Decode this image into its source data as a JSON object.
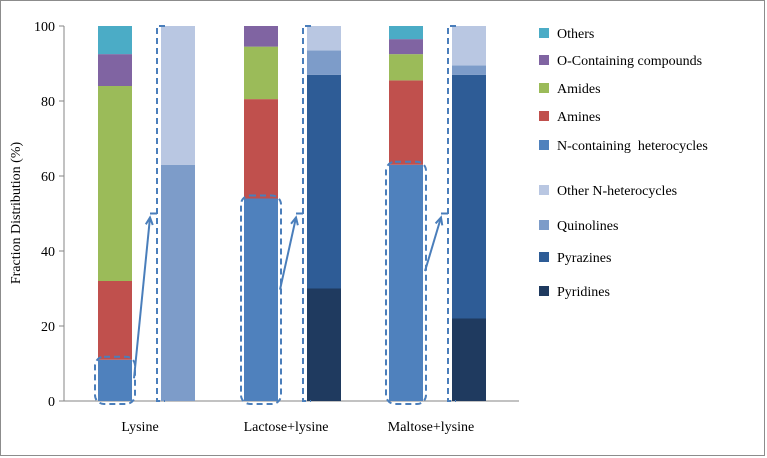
{
  "chart_data": {
    "type": "bar",
    "stacked": true,
    "ylabel": "Fraction Distribution (%)",
    "xlabel": "",
    "ylim": [
      0,
      100
    ],
    "yticks": [
      "0",
      "20",
      "40",
      "60",
      "80",
      "100"
    ],
    "grid": false,
    "legend_placement": "right",
    "categories": [
      "Lysine",
      "Lactose+lysine",
      "Maltose+lysine"
    ],
    "total_composition": {
      "series": [
        {
          "name": "N-containing  heterocycles",
          "color": "#4f81bd",
          "values": [
            11,
            54,
            63
          ]
        },
        {
          "name": "Amines",
          "color": "#c0504d",
          "values": [
            21,
            26.5,
            22.5
          ]
        },
        {
          "name": "Amides",
          "color": "#9bbb59",
          "values": [
            52,
            14,
            7
          ]
        },
        {
          "name": "O-Containing compounds",
          "color": "#8064a2",
          "values": [
            8.5,
            5.5,
            4
          ]
        },
        {
          "name": "Others",
          "color": "#4bacc6",
          "values": [
            7.5,
            0,
            3.5
          ]
        }
      ]
    },
    "n_heterocycle_breakdown": {
      "series": [
        {
          "name": "Pyridines",
          "color": "#1f3a5f",
          "values": [
            0,
            30,
            22
          ]
        },
        {
          "name": "Pyrazines",
          "color": "#2e5c96",
          "values": [
            0,
            57,
            65
          ]
        },
        {
          "name": "Quinolines",
          "color": "#7d9cc9",
          "values": [
            63,
            6.5,
            2.5
          ]
        },
        {
          "name": "Other N-heterocycles",
          "color": "#b9c7e2",
          "values": [
            37,
            6.5,
            10.5
          ]
        }
      ]
    },
    "legend_order": [
      "Others",
      "O-Containing compounds",
      "Amides",
      "Amines",
      "N-containing  heterocycles",
      "Other N-heterocycles",
      "Quinolines",
      "Pyrazines",
      "Pyridines"
    ],
    "callout_color": "#4a7ebb"
  }
}
